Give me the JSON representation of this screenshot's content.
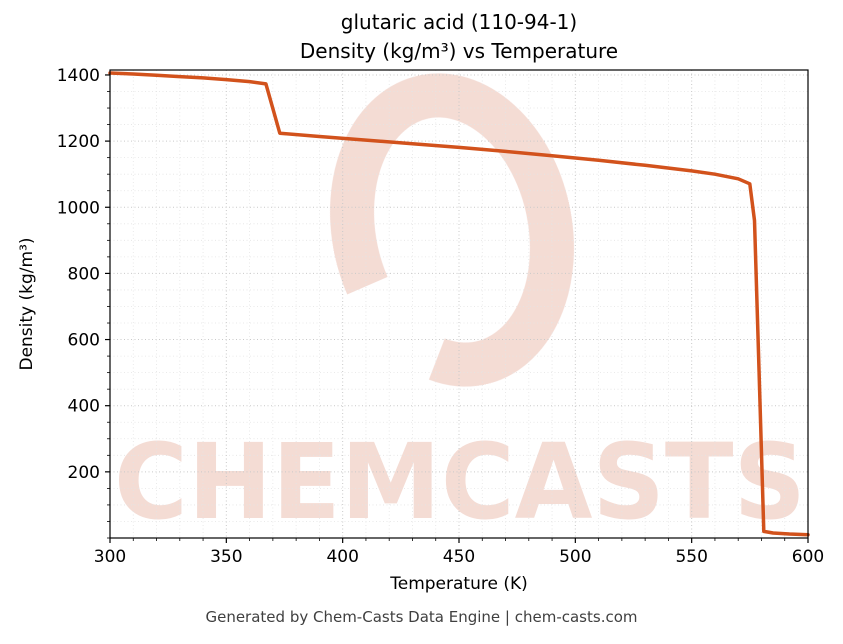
{
  "chart_data": {
    "type": "line",
    "title_line1": "glutaric acid (110-94-1)",
    "title_line2": "Density (kg/m³) vs Temperature",
    "xlabel": "Temperature (K)",
    "ylabel": "Density (kg/m³)",
    "xlim": [
      300,
      600
    ],
    "ylim": [
      0,
      1415
    ],
    "x_ticks": [
      300,
      350,
      400,
      450,
      500,
      550,
      600
    ],
    "y_ticks": [
      200,
      400,
      600,
      800,
      1000,
      1200,
      1400
    ],
    "x_minor_step": 10,
    "y_minor_step": 50,
    "grid": true,
    "legend": "none",
    "line_color": "#d2521c",
    "series": [
      {
        "name": "density",
        "points": [
          [
            300,
            1406
          ],
          [
            310,
            1403
          ],
          [
            320,
            1399
          ],
          [
            330,
            1395
          ],
          [
            340,
            1391
          ],
          [
            350,
            1386
          ],
          [
            360,
            1380
          ],
          [
            367,
            1373
          ],
          [
            373,
            1224
          ],
          [
            390,
            1214
          ],
          [
            410,
            1203
          ],
          [
            430,
            1192
          ],
          [
            450,
            1181
          ],
          [
            470,
            1169
          ],
          [
            490,
            1156
          ],
          [
            510,
            1142
          ],
          [
            530,
            1127
          ],
          [
            550,
            1110
          ],
          [
            560,
            1100
          ],
          [
            570,
            1086
          ],
          [
            575,
            1071
          ],
          [
            577,
            960
          ],
          [
            579,
            500
          ],
          [
            581,
            20
          ],
          [
            585,
            15
          ],
          [
            592,
            12
          ],
          [
            600,
            10
          ]
        ]
      }
    ]
  },
  "watermark": {
    "text": "CHEMCASTS",
    "color": "#c94f2b",
    "opacity": 0.2
  },
  "footer": {
    "text": "Generated by Chem-Casts Data Engine | chem-casts.com"
  }
}
